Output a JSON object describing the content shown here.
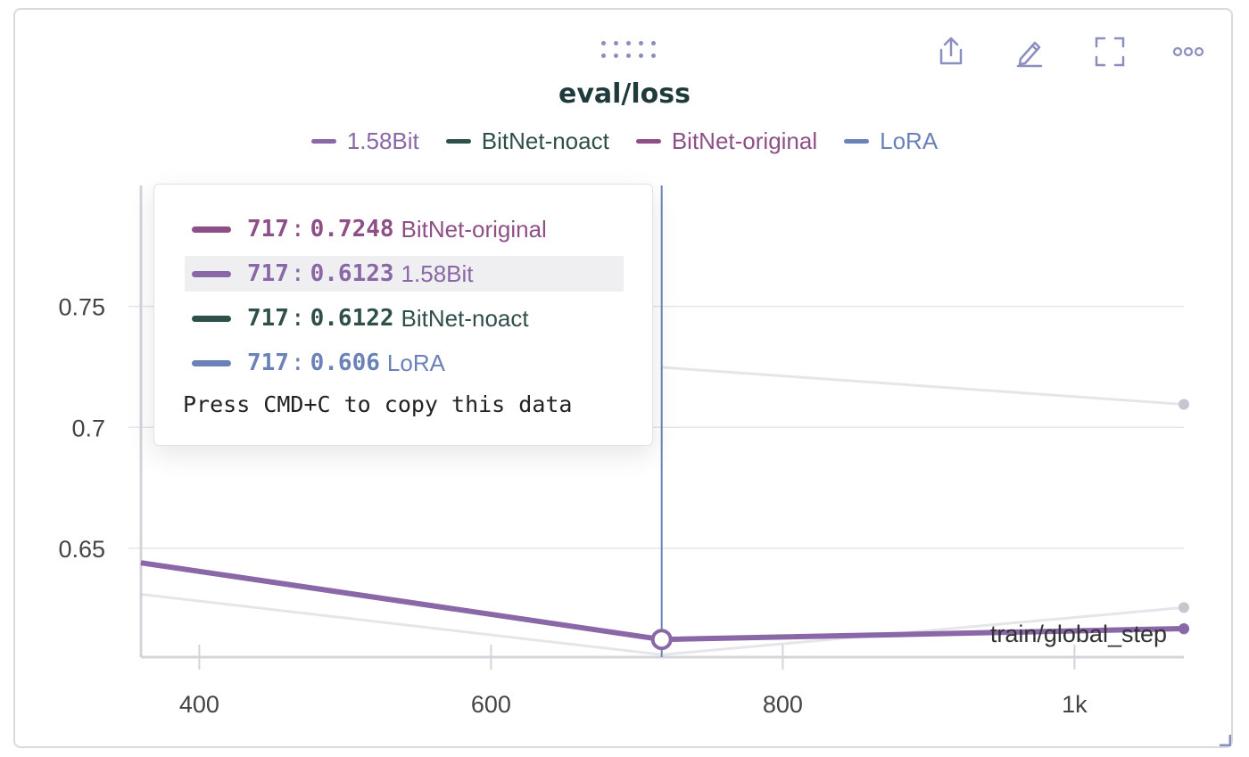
{
  "panel": {
    "icons": [
      "drag-handle-icon",
      "share-icon",
      "edit-icon",
      "fullscreen-icon",
      "more-icon",
      "resize-icon"
    ]
  },
  "chart_data": {
    "type": "line",
    "title": "eval/loss",
    "xlabel": "train/global_step",
    "ylabel": "",
    "xlim": [
      360,
      1075
    ],
    "ylim": [
      0.605,
      0.8
    ],
    "x_ticks": [
      400,
      600,
      800,
      1000
    ],
    "x_tick_labels": [
      "400",
      "600",
      "800",
      "1k"
    ],
    "y_ticks": [
      0.65,
      0.7,
      0.75
    ],
    "y_tick_labels": [
      "0.65",
      "0.7",
      "0.75"
    ],
    "grid": true,
    "legend_position": "top-center",
    "series": [
      {
        "name": "1.58Bit",
        "color": "#8a67a6",
        "x": [
          360,
          717,
          1075
        ],
        "y": [
          0.644,
          0.6123,
          0.6168
        ]
      },
      {
        "name": "BitNet-noact",
        "color": "#2f4f4a",
        "x": [
          360,
          717,
          1075
        ],
        "y": [
          0.644,
          0.6122,
          0.6165
        ]
      },
      {
        "name": "BitNet-original",
        "color": "#8e4f86",
        "x": [
          717,
          1075
        ],
        "y": [
          0.7248,
          0.7095
        ]
      },
      {
        "name": "LoRA",
        "color": "#6b82b8",
        "x": [
          360,
          717,
          1075
        ],
        "y": [
          0.631,
          0.606,
          0.6255
        ]
      }
    ],
    "hover": {
      "step": 717,
      "rows": [
        {
          "step": "717",
          "value": "0.7248",
          "name": "BitNet-original",
          "color": "#8e4f86"
        },
        {
          "step": "717",
          "value": "0.6123",
          "name": "1.58Bit",
          "color": "#8a67a6",
          "highlight": true
        },
        {
          "step": "717",
          "value": "0.6122",
          "name": "BitNet-noact",
          "color": "#2f4f4a"
        },
        {
          "step": "717",
          "value": "0.606",
          "name": "LoRA",
          "color": "#6b82b8"
        }
      ],
      "copy_hint": "Press CMD+C to copy this data"
    }
  }
}
